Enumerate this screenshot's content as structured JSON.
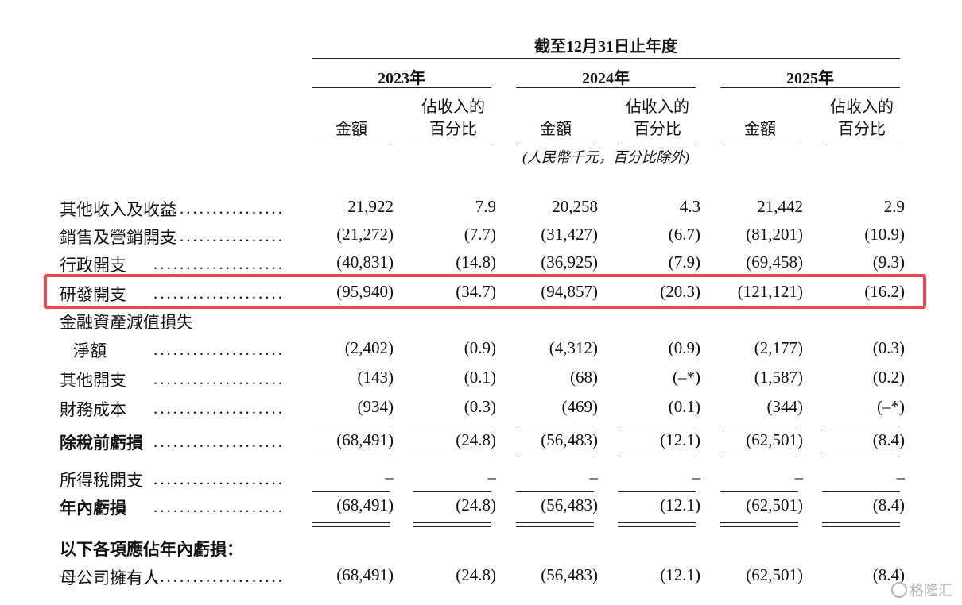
{
  "header": {
    "period": "截至12月31日止年度",
    "years": [
      "2023年",
      "2024年",
      "2025年"
    ],
    "col_amount": "金額",
    "col_pct_line1": "佔收入的",
    "col_pct_line2": "百分比",
    "unit_note": "(人民幣千元，百分比除外)"
  },
  "rows": [
    {
      "label": "其他收入及收益",
      "values": [
        "21,922",
        "7.9",
        "20,258",
        "4.3",
        "21,442",
        "2.9"
      ]
    },
    {
      "label": "銷售及營銷開支",
      "values": [
        "(21,272)",
        "(7.7)",
        "(31,427)",
        "(6.7)",
        "(81,201)",
        "(10.9)"
      ]
    },
    {
      "label": "行政開支",
      "values": [
        "(40,831)",
        "(14.8)",
        "(36,925)",
        "(7.9)",
        "(69,458)",
        "(9.3)"
      ]
    },
    {
      "label": "研發開支",
      "values": [
        "(95,940)",
        "(34.7)",
        "(94,857)",
        "(20.3)",
        "(121,121)",
        "(16.2)"
      ]
    },
    {
      "label": "金融資產減值損失",
      "label2": "淨額",
      "values": [
        "(2,402)",
        "(0.9)",
        "(4,312)",
        "(0.9)",
        "(2,177)",
        "(0.3)"
      ]
    },
    {
      "label": "其他開支",
      "values": [
        "(143)",
        "(0.1)",
        "(68)",
        "(–*)",
        "(1,587)",
        "(0.2)"
      ]
    },
    {
      "label": "財務成本",
      "values": [
        "(934)",
        "(0.3)",
        "(469)",
        "(0.1)",
        "(344)",
        "(–*)"
      ]
    },
    {
      "label": "除稅前虧損",
      "values": [
        "(68,491)",
        "(24.8)",
        "(56,483)",
        "(12.1)",
        "(62,501)",
        "(8.4)"
      ]
    },
    {
      "label": "所得稅開支",
      "values": [
        "–",
        "–",
        "–",
        "–",
        "–",
        "–"
      ]
    },
    {
      "label": "年內虧損",
      "values": [
        "(68,491)",
        "(24.8)",
        "(56,483)",
        "(12.1)",
        "(62,501)",
        "(8.4)"
      ]
    },
    {
      "label": "以下各項應佔年內虧損："
    },
    {
      "label": "母公司擁有人",
      "values": [
        "(68,491)",
        "(24.8)",
        "(56,483)",
        "(12.1)",
        "(62,501)",
        "(8.4)"
      ]
    }
  ],
  "dots": "....................",
  "watermark": "格隆汇"
}
